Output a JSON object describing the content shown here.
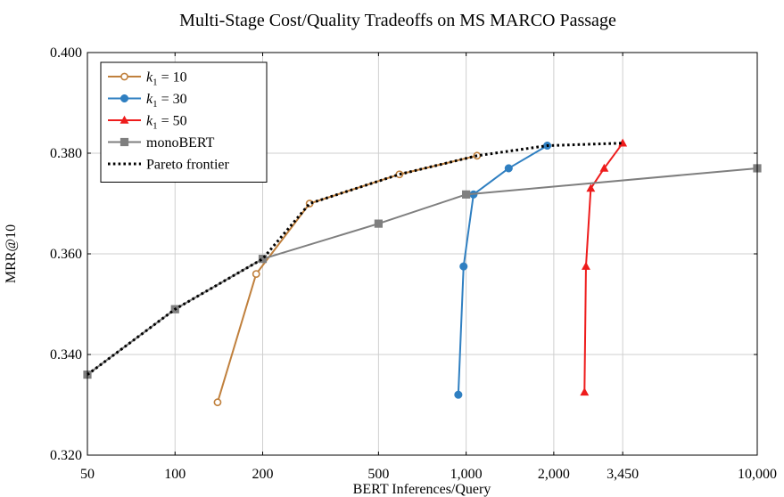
{
  "chart_data": {
    "type": "line",
    "title": "Multi-Stage Cost/Quality Tradeoffs on MS MARCO Passage",
    "xlabel": "BERT Inferences/Query",
    "ylabel": "MRR@10",
    "xscale": "log",
    "xlim": [
      50,
      10000
    ],
    "ylim": [
      0.32,
      0.4
    ],
    "grid": true,
    "legend_position": "top-left",
    "xticks": [
      50,
      100,
      200,
      500,
      1000,
      2000,
      3450,
      10000
    ],
    "xtick_labels": [
      "50",
      "100",
      "200",
      "500",
      "1,000",
      "2,000",
      "3,450",
      "10,000"
    ],
    "yticks": [
      0.32,
      0.34,
      0.36,
      0.38,
      0.4
    ],
    "ytick_labels": [
      "0.320",
      "0.340",
      "0.360",
      "0.380",
      "0.400"
    ],
    "series": [
      {
        "name": "k1 = 10",
        "legend_base": "k",
        "legend_sub": "1",
        "legend_rest": " = 10",
        "color": "#c0803d",
        "marker": "circle-open",
        "style": "solid",
        "x": [
          140,
          190,
          290,
          590,
          1090
        ],
        "y": [
          0.3305,
          0.356,
          0.37,
          0.3758,
          0.3795
        ]
      },
      {
        "name": "k1 = 30",
        "legend_base": "k",
        "legend_sub": "1",
        "legend_rest": " = 30",
        "color": "#2f7fc1",
        "marker": "circle",
        "style": "solid",
        "x": [
          940,
          980,
          1060,
          1400,
          1900
        ],
        "y": [
          0.332,
          0.3575,
          0.3718,
          0.377,
          0.3815
        ]
      },
      {
        "name": "k1 = 50",
        "legend_base": "k",
        "legend_sub": "1",
        "legend_rest": " = 50",
        "color": "#ee1c1c",
        "marker": "triangle",
        "style": "solid",
        "x": [
          2550,
          2580,
          2680,
          2980,
          3450
        ],
        "y": [
          0.3325,
          0.3575,
          0.373,
          0.377,
          0.382
        ]
      },
      {
        "name": "monoBERT",
        "legend_base": "monoBERT",
        "legend_sub": "",
        "legend_rest": "",
        "color": "#7f7f7f",
        "marker": "square",
        "style": "solid",
        "x": [
          50,
          100,
          200,
          500,
          1000,
          10000
        ],
        "y": [
          0.336,
          0.349,
          0.359,
          0.366,
          0.3718,
          0.377
        ]
      },
      {
        "name": "Pareto frontier",
        "legend_base": "Pareto frontier",
        "legend_sub": "",
        "legend_rest": "",
        "color": "#000000",
        "marker": "none",
        "style": "dotted",
        "x": [
          50,
          100,
          200,
          290,
          590,
          1090,
          1900,
          3450
        ],
        "y": [
          0.336,
          0.349,
          0.359,
          0.37,
          0.3758,
          0.3795,
          0.3815,
          0.382
        ]
      }
    ]
  }
}
